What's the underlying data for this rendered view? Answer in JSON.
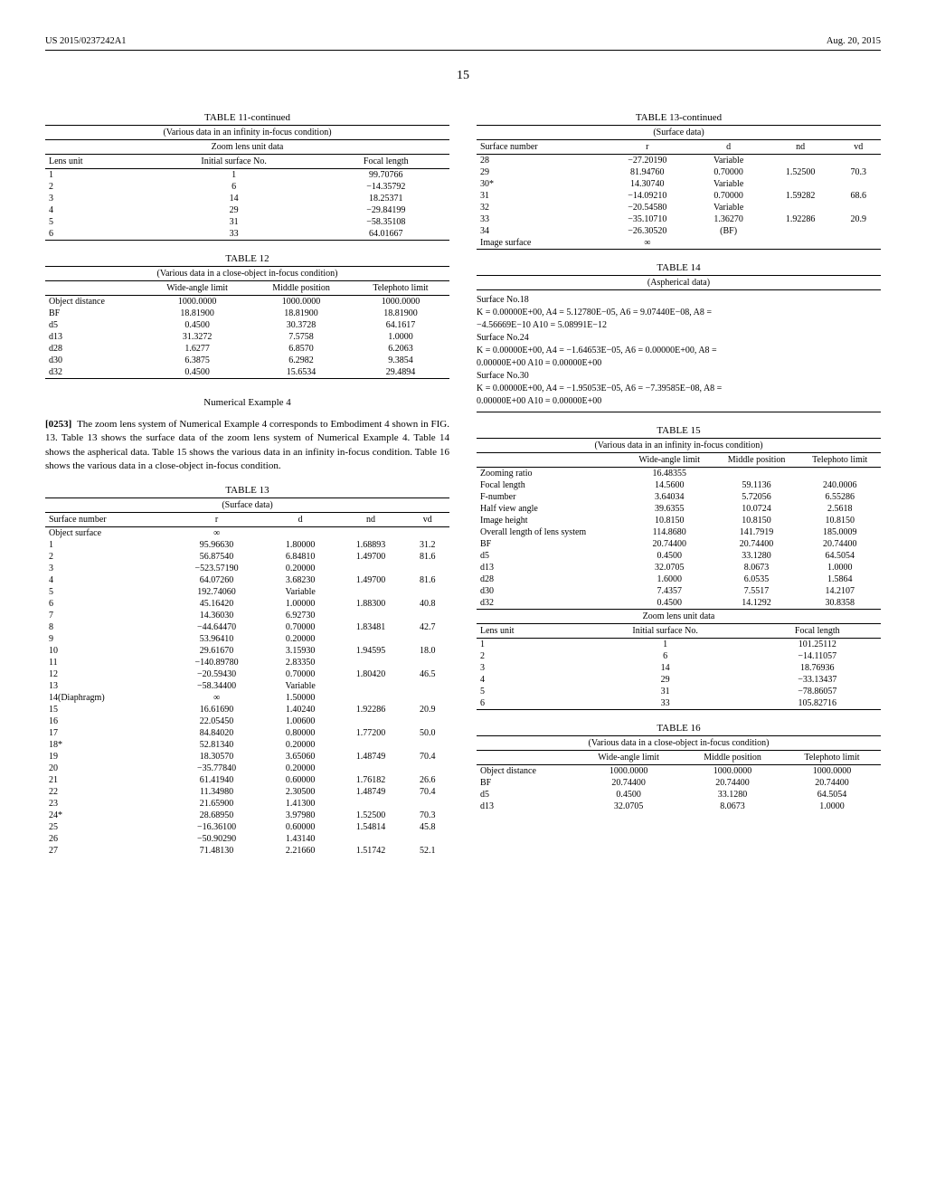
{
  "header": {
    "pub_num": "US 2015/0237242A1",
    "date": "Aug. 20, 2015",
    "page": "15"
  },
  "t11c": {
    "title": "TABLE 11-continued",
    "caption": "(Various data in an infinity in-focus condition)",
    "sub": "Zoom lens unit data",
    "h": [
      "Lens unit",
      "Initial surface No.",
      "Focal length"
    ],
    "rows": [
      [
        "1",
        "1",
        "99.70766"
      ],
      [
        "2",
        "6",
        "−14.35792"
      ],
      [
        "3",
        "14",
        "18.25371"
      ],
      [
        "4",
        "29",
        "−29.84199"
      ],
      [
        "5",
        "31",
        "−58.35108"
      ],
      [
        "6",
        "33",
        "64.01667"
      ]
    ]
  },
  "t12": {
    "title": "TABLE 12",
    "caption": "(Various data in a close-object in-focus condition)",
    "h": [
      "",
      "Wide-angle limit",
      "Middle position",
      "Telephoto limit"
    ],
    "rows": [
      [
        "Object distance",
        "1000.0000",
        "1000.0000",
        "1000.0000"
      ],
      [
        "BF",
        "18.81900",
        "18.81900",
        "18.81900"
      ],
      [
        "d5",
        "0.4500",
        "30.3728",
        "64.1617"
      ],
      [
        "d13",
        "31.3272",
        "7.5758",
        "1.0000"
      ],
      [
        "d28",
        "1.6277",
        "6.8570",
        "6.2063"
      ],
      [
        "d30",
        "6.3875",
        "6.2982",
        "9.3854"
      ],
      [
        "d32",
        "0.4500",
        "15.6534",
        "29.4894"
      ]
    ]
  },
  "ne4": {
    "head": "Numerical Example 4",
    "para_num": "[0253]",
    "para": "The zoom lens system of Numerical Example 4 corresponds to Embodiment 4 shown in FIG. 13. Table 13 shows the surface data of the zoom lens system of Numerical Example 4. Table 14 shows the aspherical data. Table 15 shows the various data in an infinity in-focus condition. Table 16 shows the various data in a close-object in-focus condition."
  },
  "t13": {
    "title": "TABLE 13",
    "caption": "(Surface data)",
    "h": [
      "Surface number",
      "r",
      "d",
      "nd",
      "vd"
    ],
    "rows": [
      [
        "Object surface",
        "∞",
        "",
        "",
        ""
      ],
      [
        "1",
        "95.96630",
        "1.80000",
        "1.68893",
        "31.2"
      ],
      [
        "2",
        "56.87540",
        "6.84810",
        "1.49700",
        "81.6"
      ],
      [
        "3",
        "−523.57190",
        "0.20000",
        "",
        ""
      ],
      [
        "4",
        "64.07260",
        "3.68230",
        "1.49700",
        "81.6"
      ],
      [
        "5",
        "192.74060",
        "Variable",
        "",
        ""
      ],
      [
        "6",
        "45.16420",
        "1.00000",
        "1.88300",
        "40.8"
      ],
      [
        "7",
        "14.36030",
        "6.92730",
        "",
        ""
      ],
      [
        "8",
        "−44.64470",
        "0.70000",
        "1.83481",
        "42.7"
      ],
      [
        "9",
        "53.96410",
        "0.20000",
        "",
        ""
      ],
      [
        "10",
        "29.61670",
        "3.15930",
        "1.94595",
        "18.0"
      ],
      [
        "11",
        "−140.89780",
        "2.83350",
        "",
        ""
      ],
      [
        "12",
        "−20.59430",
        "0.70000",
        "1.80420",
        "46.5"
      ],
      [
        "13",
        "−58.34400",
        "Variable",
        "",
        ""
      ],
      [
        "14(Diaphragm)",
        "∞",
        "1.50000",
        "",
        ""
      ],
      [
        "15",
        "16.61690",
        "1.40240",
        "1.92286",
        "20.9"
      ],
      [
        "16",
        "22.05450",
        "1.00600",
        "",
        ""
      ],
      [
        "17",
        "84.84020",
        "0.80000",
        "1.77200",
        "50.0"
      ],
      [
        "18*",
        "52.81340",
        "0.20000",
        "",
        ""
      ],
      [
        "19",
        "18.30570",
        "3.65060",
        "1.48749",
        "70.4"
      ],
      [
        "20",
        "−35.77840",
        "0.20000",
        "",
        ""
      ],
      [
        "21",
        "61.41940",
        "0.60000",
        "1.76182",
        "26.6"
      ],
      [
        "22",
        "11.34980",
        "2.30500",
        "1.48749",
        "70.4"
      ],
      [
        "23",
        "21.65900",
        "1.41300",
        "",
        ""
      ],
      [
        "24*",
        "28.68950",
        "3.97980",
        "1.52500",
        "70.3"
      ],
      [
        "25",
        "−16.36100",
        "0.60000",
        "1.54814",
        "45.8"
      ],
      [
        "26",
        "−50.90290",
        "1.43140",
        "",
        ""
      ],
      [
        "27",
        "71.48130",
        "2.21660",
        "1.51742",
        "52.1"
      ]
    ]
  },
  "t13c": {
    "title": "TABLE 13-continued",
    "caption": "(Surface data)",
    "h": [
      "Surface number",
      "r",
      "d",
      "nd",
      "vd"
    ],
    "rows": [
      [
        "28",
        "−27.20190",
        "Variable",
        "",
        ""
      ],
      [
        "29",
        "81.94760",
        "0.70000",
        "1.52500",
        "70.3"
      ],
      [
        "30*",
        "14.30740",
        "Variable",
        "",
        ""
      ],
      [
        "31",
        "−14.09210",
        "0.70000",
        "1.59282",
        "68.6"
      ],
      [
        "32",
        "−20.54580",
        "Variable",
        "",
        ""
      ],
      [
        "33",
        "−35.10710",
        "1.36270",
        "1.92286",
        "20.9"
      ],
      [
        "34",
        "−26.30520",
        "(BF)",
        "",
        ""
      ],
      [
        "Image surface",
        "∞",
        "",
        "",
        ""
      ]
    ]
  },
  "t14": {
    "title": "TABLE 14",
    "caption": "(Aspherical data)",
    "lines": [
      "Surface No.18",
      "K = 0.00000E+00, A4 = 5.12780E−05, A6 = 9.07440E−08, A8 =",
      "−4.56669E−10 A10 = 5.08991E−12",
      "Surface No.24",
      "K = 0.00000E+00, A4 = −1.64653E−05, A6 = 0.00000E+00, A8 =",
      "0.00000E+00 A10 = 0.00000E+00",
      "Surface No.30",
      "K = 0.00000E+00, A4 = −1.95053E−05, A6 = −7.39585E−08, A8 =",
      "0.00000E+00 A10 = 0.00000E+00"
    ]
  },
  "t15": {
    "title": "TABLE 15",
    "caption": "(Various data in an infinity in-focus condition)",
    "zoom_label": "Zooming ratio",
    "zoom_val": "16.48355",
    "h": [
      "",
      "Wide-angle limit",
      "Middle position",
      "Telephoto limit"
    ],
    "rows1": [
      [
        "Focal length",
        "14.5600",
        "59.1136",
        "240.0006"
      ],
      [
        "F-number",
        "3.64034",
        "5.72056",
        "6.55286"
      ],
      [
        "Half view angle",
        "39.6355",
        "10.0724",
        "2.5618"
      ],
      [
        "Image height",
        "10.8150",
        "10.8150",
        "10.8150"
      ],
      [
        "Overall length of lens system",
        "114.8680",
        "141.7919",
        "185.0009"
      ],
      [
        "BF",
        "20.74400",
        "20.74400",
        "20.74400"
      ],
      [
        "d5",
        "0.4500",
        "33.1280",
        "64.5054"
      ],
      [
        "d13",
        "32.0705",
        "8.0673",
        "1.0000"
      ],
      [
        "d28",
        "1.6000",
        "6.0535",
        "1.5864"
      ],
      [
        "d30",
        "7.4357",
        "7.5517",
        "14.2107"
      ],
      [
        "d32",
        "0.4500",
        "14.1292",
        "30.8358"
      ]
    ],
    "sub": "Zoom lens unit data",
    "h2": [
      "Lens unit",
      "Initial surface No.",
      "Focal length"
    ],
    "rows2": [
      [
        "1",
        "1",
        "101.25112"
      ],
      [
        "2",
        "6",
        "−14.11057"
      ],
      [
        "3",
        "14",
        "18.76936"
      ],
      [
        "4",
        "29",
        "−33.13437"
      ],
      [
        "5",
        "31",
        "−78.86057"
      ],
      [
        "6",
        "33",
        "105.82716"
      ]
    ]
  },
  "t16": {
    "title": "TABLE 16",
    "caption": "(Various data in a close-object in-focus condition)",
    "h": [
      "",
      "Wide-angle limit",
      "Middle position",
      "Telephoto limit"
    ],
    "rows": [
      [
        "Object distance",
        "1000.0000",
        "1000.0000",
        "1000.0000"
      ],
      [
        "BF",
        "20.74400",
        "20.74400",
        "20.74400"
      ],
      [
        "d5",
        "0.4500",
        "33.1280",
        "64.5054"
      ],
      [
        "d13",
        "32.0705",
        "8.0673",
        "1.0000"
      ]
    ]
  }
}
